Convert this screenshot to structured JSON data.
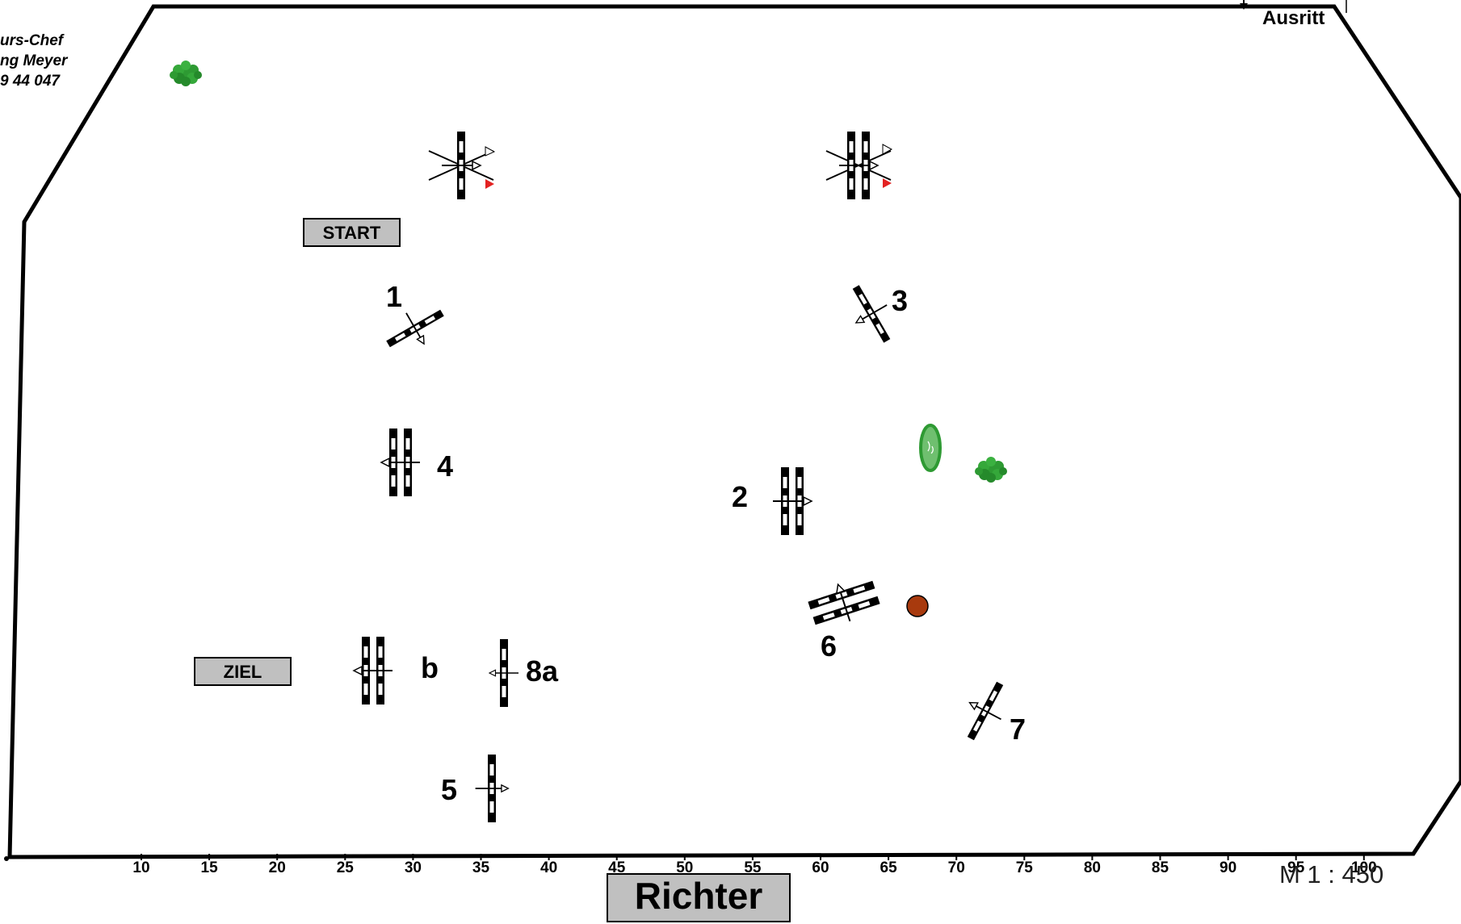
{
  "author_block": {
    "line1": "urs-Chef",
    "line2": "ng Meyer",
    "line3": "9 44 047"
  },
  "exit_label": "Ausritt",
  "start_label": "START",
  "finish_label": "ZIEL",
  "judge_label": "Richter",
  "scale_label": "M 1 : 450",
  "ruler_ticks": [
    "10",
    "15",
    "20",
    "25",
    "30",
    "35",
    "40",
    "45",
    "50",
    "55",
    "60",
    "65",
    "70",
    "75",
    "80",
    "85",
    "90",
    "95",
    "100"
  ],
  "obstacles": {
    "o1": "1",
    "o2": "2",
    "o3": "3",
    "o4": "4",
    "o5": "5",
    "o6": "6",
    "o7": "7",
    "o8a": "8a",
    "o8b": "b"
  },
  "colors": {
    "border": "#000000",
    "label_box": "#c0c0c0",
    "bush": "#2e9a33",
    "bush_dark": "#1f7a24",
    "flag_red": "#e32222",
    "ball": "#a83a0e"
  },
  "icons": [
    "bush-icon",
    "warmup-jump-icon",
    "flag-icon",
    "ball-marker-icon",
    "direction-arrow-icon"
  ]
}
